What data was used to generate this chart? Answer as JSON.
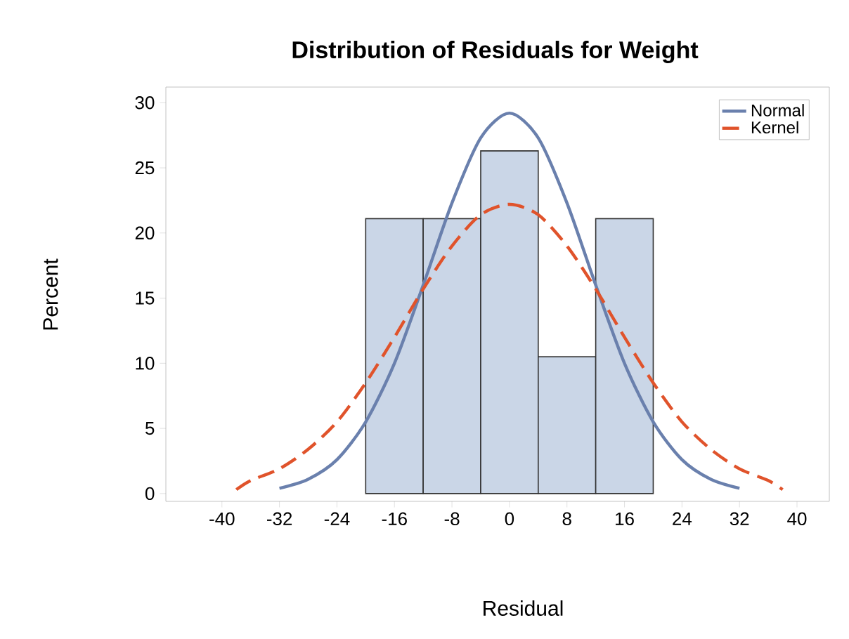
{
  "chart_data": {
    "type": "histogram",
    "title": "Distribution of Residuals for Weight",
    "xlabel": "Residual",
    "ylabel": "Percent",
    "bins": [
      -20,
      -12,
      -4,
      4,
      12,
      20
    ],
    "values": [
      21.1,
      21.1,
      26.3,
      10.5,
      21.1
    ],
    "color": "#cad6e7",
    "series": [
      {
        "type": "line",
        "name": "Normal",
        "color": "#6a80ad",
        "line_style": "solid",
        "x": [
          -32,
          -28,
          -24,
          -20,
          -16,
          -12,
          -8,
          -4,
          0,
          4,
          8,
          12,
          16,
          20,
          24,
          28,
          32
        ],
        "values": [
          0.4,
          1.1,
          2.6,
          5.5,
          10.0,
          16.0,
          22.3,
          27.3,
          29.2,
          27.3,
          22.3,
          16.0,
          10.0,
          5.5,
          2.6,
          1.1,
          0.4
        ]
      },
      {
        "type": "line",
        "name": "Kernel",
        "color": "#e0532b",
        "line_style": "dashed",
        "x": [
          -38,
          -36,
          -32,
          -28,
          -24,
          -20,
          -16,
          -12,
          -8,
          -4,
          0,
          4,
          8,
          12,
          16,
          20,
          24,
          28,
          32,
          36,
          38
        ],
        "values": [
          0.3,
          1.0,
          1.9,
          3.4,
          5.5,
          8.5,
          12.0,
          15.7,
          19.0,
          21.4,
          22.2,
          21.4,
          19.0,
          15.7,
          12.0,
          8.5,
          5.5,
          3.4,
          1.9,
          1.0,
          0.3
        ]
      }
    ],
    "xlim": [
      -47.8,
      44.5
    ],
    "ylim": [
      -0.6,
      31.2
    ],
    "xticks": [
      -40,
      -32,
      -24,
      -16,
      -8,
      0,
      8,
      16,
      24,
      32,
      40
    ],
    "yticks": [
      0,
      5,
      10,
      15,
      20,
      25,
      30
    ],
    "grid": false,
    "legend": "top right"
  }
}
